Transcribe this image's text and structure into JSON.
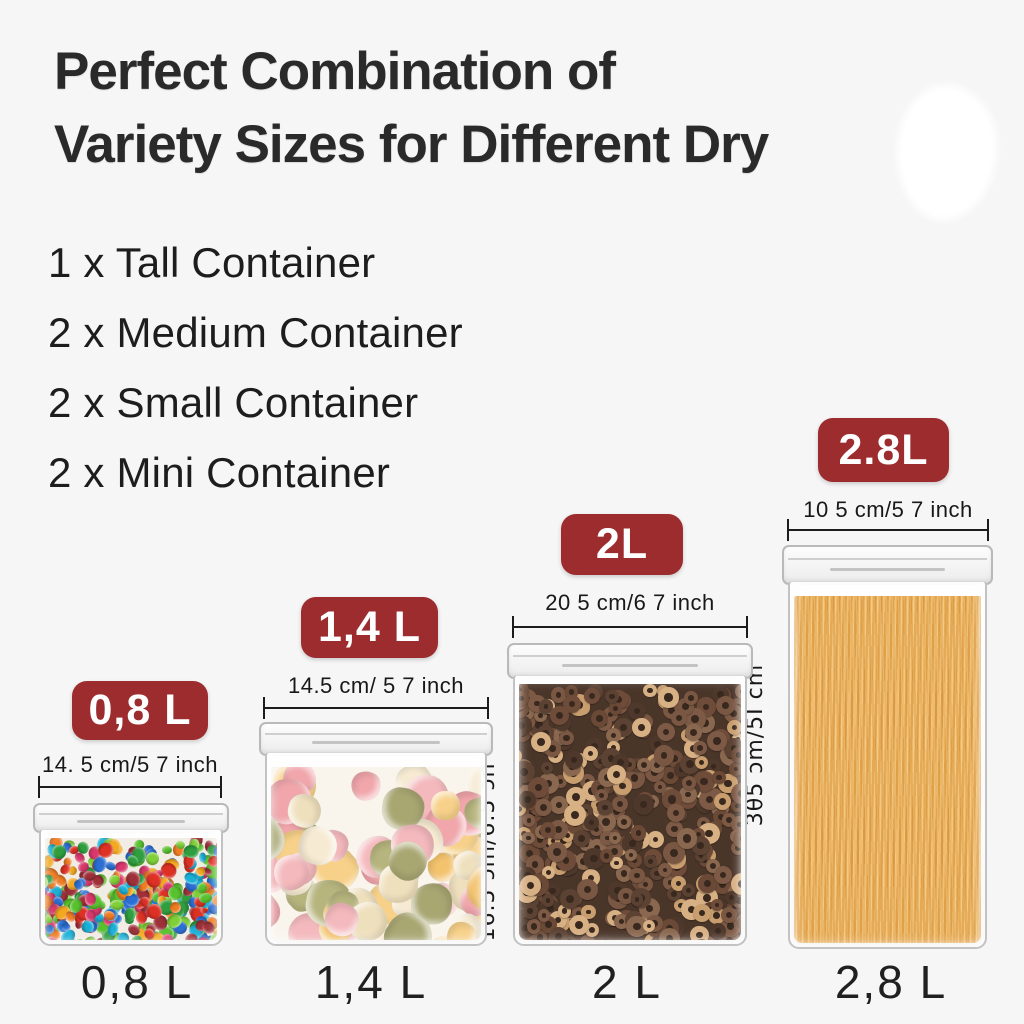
{
  "page": {
    "background": "#f6f6f6"
  },
  "title": {
    "line1": "Perfect Combination of",
    "line2": "Variety Sizes for Different Dry"
  },
  "list": [
    "1 x Tall Container",
    "2 x Medium Container",
    "2 x Small Container",
    "2 x Mini Container"
  ],
  "colors": {
    "badge_bg": "#9d2c2e",
    "badge_text": "#ffffff",
    "text_dark": "#212121",
    "measure_line": "#1c1c1c"
  },
  "containers": [
    {
      "name": "mini",
      "badge": "0,8 L",
      "width_label": "14. 5 cm/5 7 inch",
      "bottom_label": "0,8 L",
      "content": "rainbow-candy"
    },
    {
      "name": "small",
      "badge": "1,4 L",
      "width_label": "14.5 cm/ 5 7 inch",
      "bottom_label": "1,4 L",
      "content": "marshmallows"
    },
    {
      "name": "medium",
      "badge": "2L",
      "width_label": "20 5 cm/6 7 inch",
      "height_label": "16.5 ɔm/6.5 ɔn",
      "bottom_label": "2 L",
      "content": "chocolate-cereal"
    },
    {
      "name": "tall",
      "badge": "2.8L",
      "width_label": "10 5 cm/5 7 inch",
      "height_label": "3θ5 ɔm/5I cm",
      "bottom_label": "2,8 L",
      "content": "spaghetti"
    }
  ],
  "content_palettes": {
    "rainbow-candy": {
      "mode": "dot",
      "count": 330,
      "min": 9,
      "max": 16,
      "squish": true,
      "colors": [
        "#dd3124",
        "#ef7c22",
        "#f2a81f",
        "#58c22e",
        "#2e9e3e",
        "#1ab0d6",
        "#2b6fd4",
        "#9e3039",
        "#d8386b",
        "#7fd038"
      ]
    },
    "marshmallows": {
      "mode": "dot",
      "blob": true,
      "count": 85,
      "min": 28,
      "max": 48,
      "colors": [
        "#f4b9bd",
        "#f0a6ab",
        "#f7d189",
        "#f3c36e",
        "#b7b57e",
        "#a8a671",
        "#f6ead2",
        "#efe0bd"
      ]
    },
    "chocolate-cereal": {
      "mode": "ring",
      "count": 400,
      "min": 12,
      "max": 22,
      "hole": "#38281e",
      "colors": [
        "#6e4c39",
        "#7d5a45",
        "#5c4233",
        "#8a6850",
        "#4e382b",
        "#6a4936",
        "#7a5743",
        "#d7b084",
        "#c89e6e"
      ]
    },
    "spaghetti": {
      "mode": "css",
      "stripe_colors": [
        "#e3a24a",
        "#f2c077",
        "#cf8f3a",
        "#f6cd8a"
      ]
    }
  }
}
